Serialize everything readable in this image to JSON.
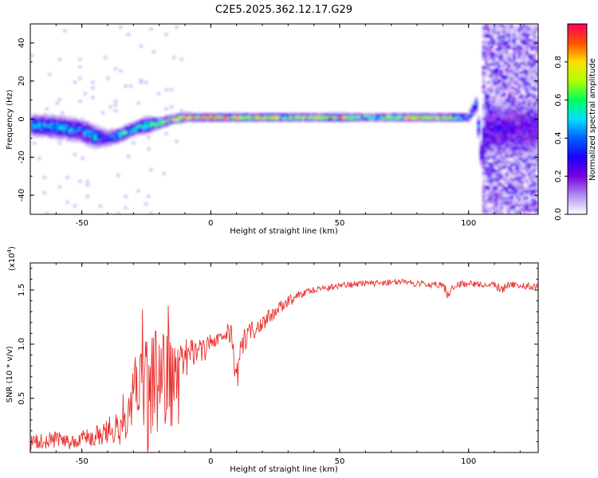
{
  "colors": {
    "snr_line": "#e8322e",
    "colormap": [
      "#ffffff",
      "#b08cf0",
      "#7a00e0",
      "#1a00ff",
      "#0060ff",
      "#00e0ff",
      "#00ff60",
      "#b0ff00",
      "#ffe000",
      "#ff5000",
      "#ff0060"
    ]
  },
  "chart_data": [
    {
      "type": "heatmap",
      "title": "C2E5.2025.362.12.17.G29",
      "xlabel": "Height of straight line (km)",
      "ylabel": "Frequency (Hz)",
      "xlim": [
        -70,
        127
      ],
      "ylim": [
        -50,
        50
      ],
      "xticks": [
        -50,
        0,
        50,
        100
      ],
      "xtick_labels": [
        "-50",
        "0",
        "50",
        "100"
      ],
      "yticks": [
        -40,
        -20,
        0,
        20,
        40
      ],
      "ytick_labels": [
        "-40",
        "-20",
        "0",
        "20",
        "40"
      ],
      "colorbar": {
        "label": "Normalized spectral amplitude",
        "range": [
          0,
          1
        ],
        "ticks": [
          0.0,
          0.2,
          0.4,
          0.6,
          0.8
        ],
        "tick_labels": [
          "0.0",
          "0.2",
          "0.4",
          "0.6",
          "0.8"
        ]
      },
      "ridge": {
        "x": [
          -70,
          -60,
          -50,
          -45,
          -40,
          -35,
          -30,
          -25,
          -20,
          -15,
          -10,
          0,
          10,
          20,
          30,
          40,
          50,
          60,
          70,
          80,
          90,
          100,
          103,
          105,
          107
        ],
        "freq": [
          -3,
          -4,
          -6,
          -9,
          -10,
          -8,
          -5,
          -3,
          -2,
          0,
          1,
          1,
          1,
          1,
          1,
          1,
          1,
          1,
          1,
          1,
          1,
          1,
          8,
          -20,
          -5
        ],
        "amplitude": [
          0.4,
          0.45,
          0.35,
          0.45,
          0.3,
          0.55,
          0.5,
          0.55,
          0.6,
          0.75,
          0.85,
          0.95,
          0.7,
          0.8,
          0.6,
          0.7,
          0.75,
          0.55,
          0.7,
          0.8,
          0.9,
          0.4,
          0.4,
          0.3,
          0.2
        ],
        "spread_hz": [
          8,
          8,
          9,
          8,
          6,
          5,
          5,
          6,
          4,
          3,
          3,
          2.5,
          3,
          2.5,
          3,
          2.5,
          3,
          2.5,
          2.5,
          2.5,
          2.5,
          3,
          6,
          10,
          12
        ]
      },
      "noise_region": {
        "x_start": 105,
        "x_end": 127
      }
    },
    {
      "type": "line",
      "xlabel": "Height of straight line (km)",
      "ylabel": "SNR (10 * v/v)",
      "scale_label": "(x10",
      "scale_exponent": "4",
      "scale_close": ")",
      "xlim": [
        -70,
        127
      ],
      "ylim": [
        0,
        1.75
      ],
      "xticks": [
        -50,
        0,
        50,
        100
      ],
      "xtick_labels": [
        "-50",
        "0",
        "50",
        "100"
      ],
      "yticks": [
        0.5,
        1.0,
        1.5
      ],
      "ytick_labels": [
        "0.5",
        "1.0",
        "1.5"
      ],
      "series": [
        {
          "x": [
            -70,
            -65,
            -60,
            -55,
            -50,
            -45,
            -40,
            -35,
            -32,
            -30,
            -28,
            -26,
            -25,
            -22,
            -20,
            -18,
            -16,
            -14,
            -12,
            -10,
            -8,
            -5,
            -2,
            0,
            2,
            5,
            8,
            10,
            12,
            15,
            20,
            25,
            30,
            35,
            40,
            45,
            50,
            55,
            60,
            65,
            70,
            75,
            80,
            85,
            90,
            92,
            95,
            100,
            105,
            110,
            113,
            115,
            120,
            127
          ],
          "y": [
            0.08,
            0.1,
            0.12,
            0.1,
            0.13,
            0.15,
            0.2,
            0.27,
            0.45,
            0.55,
            0.4,
            0.6,
            0.5,
            0.65,
            0.55,
            0.7,
            0.6,
            0.55,
            0.65,
            0.85,
            0.9,
            0.95,
            0.95,
            1.0,
            1.05,
            1.08,
            1.1,
            0.65,
            1.0,
            1.1,
            1.2,
            1.3,
            1.4,
            1.46,
            1.5,
            1.52,
            1.54,
            1.55,
            1.56,
            1.56,
            1.57,
            1.57,
            1.56,
            1.55,
            1.55,
            1.45,
            1.55,
            1.56,
            1.55,
            1.55,
            1.5,
            1.55,
            1.54,
            1.53
          ],
          "noise": [
            0.08,
            0.08,
            0.08,
            0.08,
            0.08,
            0.1,
            0.12,
            0.2,
            0.3,
            0.35,
            0.45,
            0.5,
            0.55,
            0.5,
            0.55,
            0.5,
            0.45,
            0.45,
            0.35,
            0.2,
            0.15,
            0.12,
            0.1,
            0.1,
            0.1,
            0.1,
            0.1,
            0.15,
            0.12,
            0.1,
            0.08,
            0.07,
            0.05,
            0.04,
            0.04,
            0.03,
            0.03,
            0.03,
            0.03,
            0.03,
            0.03,
            0.03,
            0.03,
            0.03,
            0.03,
            0.05,
            0.03,
            0.03,
            0.03,
            0.03,
            0.05,
            0.03,
            0.03,
            0.03
          ]
        }
      ]
    }
  ]
}
